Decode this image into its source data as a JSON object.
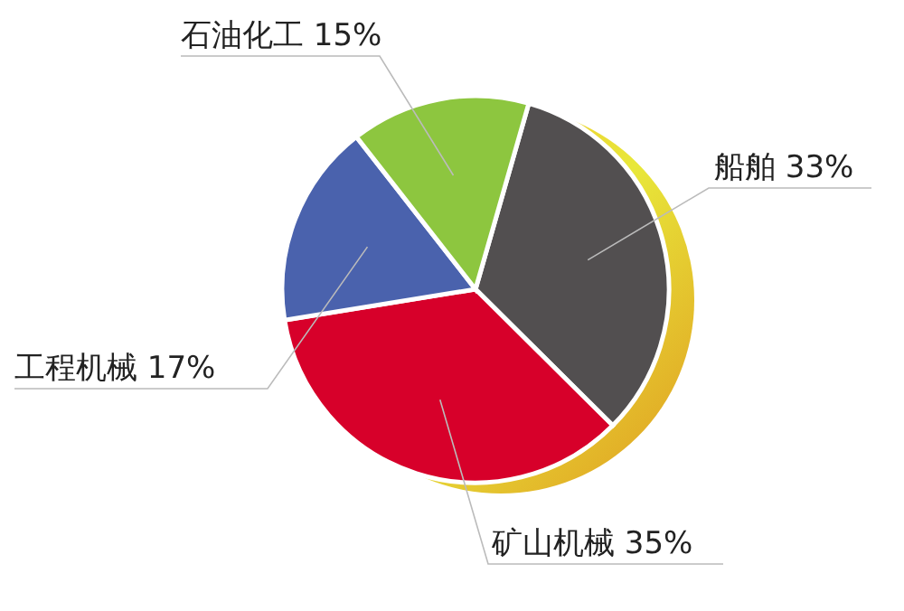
{
  "chart_data": {
    "type": "pie",
    "categories": [
      "船舶",
      "矿山机械",
      "工程机械",
      "石油化工"
    ],
    "values": [
      33,
      35,
      17,
      15
    ],
    "value_labels": [
      "33%",
      "35%",
      "17%",
      "15%"
    ],
    "colors": [
      "#524f50",
      "#d7002a",
      "#4a62ad",
      "#8dc63f"
    ]
  }
}
